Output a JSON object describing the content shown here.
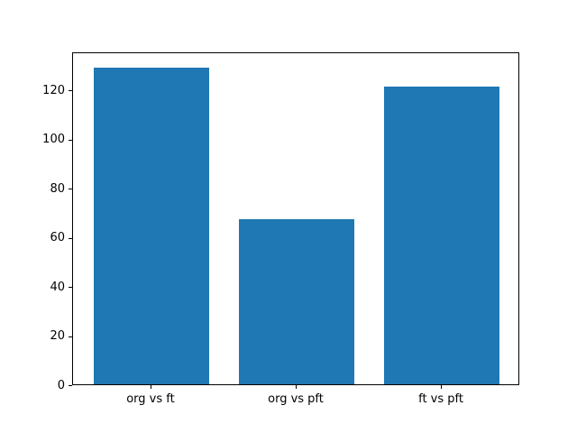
{
  "chart_data": {
    "type": "bar",
    "title": "",
    "xlabel": "",
    "ylabel": "",
    "categories": [
      "org vs ft",
      "org vs pft",
      "ft vs pft"
    ],
    "values": [
      129,
      67,
      121
    ],
    "yticks": [
      0,
      20,
      40,
      60,
      80,
      100,
      120
    ],
    "ylim": [
      0,
      135.45
    ],
    "bar_color": "#1f77b4",
    "bar_width_fraction": 0.8,
    "background_color": "#ffffff",
    "axis_color": "#000000",
    "grid": false,
    "legend": "none"
  }
}
